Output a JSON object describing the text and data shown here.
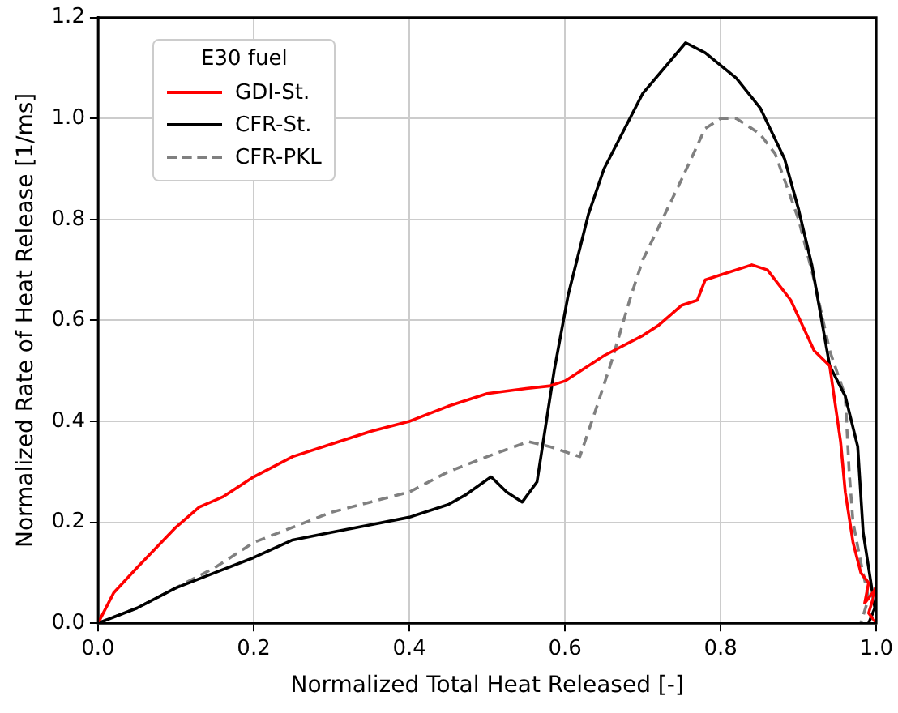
{
  "chart_data": {
    "type": "line",
    "xlabel": "Normalized Total Heat Released [-]",
    "ylabel": "Normalized Rate of Heat Release [1/ms]",
    "legend_title": "E30 fuel",
    "legend": "top left",
    "grid": true,
    "xlim": [
      0,
      1
    ],
    "ylim": [
      0,
      1.2
    ],
    "xticks": [
      {
        "value": 0,
        "label": "0.0"
      },
      {
        "value": 0.2,
        "label": "0.2"
      },
      {
        "value": 0.4,
        "label": "0.4"
      },
      {
        "value": 0.6,
        "label": "0.6"
      },
      {
        "value": 0.8,
        "label": "0.8"
      },
      {
        "value": 1,
        "label": "1.0"
      }
    ],
    "yticks": [
      {
        "value": 0,
        "label": "0.0"
      },
      {
        "value": 0.2,
        "label": "0.2"
      },
      {
        "value": 0.4,
        "label": "0.4"
      },
      {
        "value": 0.6,
        "label": "0.6"
      },
      {
        "value": 0.8,
        "label": "0.8"
      },
      {
        "value": 1,
        "label": "1.0"
      },
      {
        "value": 1.2,
        "label": "1.2"
      }
    ],
    "series": [
      {
        "name": "GDI-St.",
        "color": "#ff0000",
        "line_style": "solid",
        "x": [
          0,
          0.02,
          0.05,
          0.1,
          0.13,
          0.16,
          0.2,
          0.25,
          0.3,
          0.35,
          0.4,
          0.45,
          0.5,
          0.55,
          0.58,
          0.6,
          0.65,
          0.7,
          0.72,
          0.75,
          0.77,
          0.78,
          0.8,
          0.84,
          0.86,
          0.89,
          0.92,
          0.94,
          0.954,
          0.96,
          0.97,
          0.98,
          0.99,
          0.985,
          1,
          0.99,
          1
        ],
        "values": [
          0,
          0.06,
          0.11,
          0.19,
          0.23,
          0.25,
          0.29,
          0.33,
          0.355,
          0.38,
          0.4,
          0.43,
          0.455,
          0.465,
          0.47,
          0.48,
          0.53,
          0.57,
          0.59,
          0.63,
          0.64,
          0.68,
          0.69,
          0.71,
          0.7,
          0.64,
          0.54,
          0.51,
          0.36,
          0.26,
          0.16,
          0.1,
          0.08,
          0.04,
          0.07,
          0.02,
          0
        ]
      },
      {
        "name": "CFR-St.",
        "color": "#000000",
        "line_style": "solid",
        "x": [
          0,
          0.05,
          0.1,
          0.2,
          0.25,
          0.3,
          0.35,
          0.4,
          0.45,
          0.473,
          0.505,
          0.525,
          0.545,
          0.564,
          0.586,
          0.604,
          0.63,
          0.65,
          0.7,
          0.755,
          0.78,
          0.82,
          0.851,
          0.882,
          0.9,
          0.917,
          0.94,
          0.96,
          0.976,
          0.983,
          0.998,
          0.99
        ],
        "values": [
          0,
          0.03,
          0.07,
          0.13,
          0.165,
          0.18,
          0.195,
          0.21,
          0.235,
          0.255,
          0.29,
          0.26,
          0.24,
          0.28,
          0.5,
          0.65,
          0.81,
          0.9,
          1.05,
          1.15,
          1.13,
          1.08,
          1.02,
          0.92,
          0.82,
          0.71,
          0.51,
          0.45,
          0.35,
          0.18,
          0.03,
          0
        ]
      },
      {
        "name": "CFR-PKL",
        "color": "#808080",
        "line_style": "dashed",
        "x": [
          0,
          0.05,
          0.1,
          0.15,
          0.2,
          0.25,
          0.3,
          0.35,
          0.4,
          0.45,
          0.5,
          0.553,
          0.58,
          0.619,
          0.641,
          0.66,
          0.685,
          0.7,
          0.75,
          0.78,
          0.8,
          0.82,
          0.85,
          0.87,
          0.9,
          0.92,
          0.94,
          0.96,
          0.965,
          0.97,
          0.98,
          0.99,
          0.98
        ],
        "values": [
          0,
          0.03,
          0.07,
          0.11,
          0.16,
          0.19,
          0.22,
          0.24,
          0.26,
          0.3,
          0.33,
          0.36,
          0.35,
          0.33,
          0.43,
          0.52,
          0.65,
          0.72,
          0.88,
          0.98,
          1,
          1,
          0.97,
          0.93,
          0.8,
          0.68,
          0.54,
          0.45,
          0.3,
          0.2,
          0.12,
          0.05,
          0
        ]
      }
    ]
  }
}
